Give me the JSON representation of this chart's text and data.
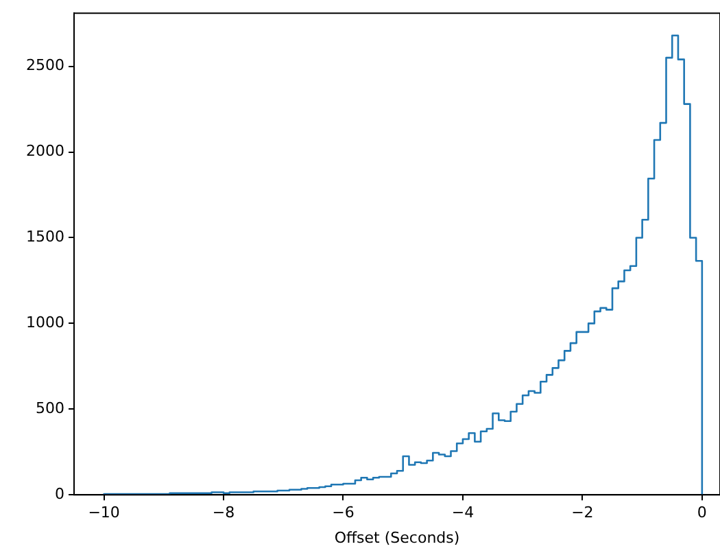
{
  "chart_data": {
    "type": "histogram",
    "xlabel": "Offset (Seconds)",
    "color": "#1f77b4",
    "bins": [
      -10.0,
      -9.9,
      -9.8,
      -9.7,
      -9.6,
      -9.5,
      -9.4,
      -9.3,
      -9.2,
      -9.1,
      -9.0,
      -8.9,
      -8.8,
      -8.7,
      -8.6,
      -8.5,
      -8.4,
      -8.3,
      -8.2,
      -8.1,
      -8.0,
      -7.9,
      -7.8,
      -7.7,
      -7.6,
      -7.5,
      -7.4,
      -7.3,
      -7.2,
      -7.1,
      -7.0,
      -6.9,
      -6.8,
      -6.7,
      -6.6,
      -6.5,
      -6.4,
      -6.3,
      -6.2,
      -6.1,
      -6.0,
      -5.9,
      -5.8,
      -5.7,
      -5.6,
      -5.5,
      -5.4,
      -5.3,
      -5.2,
      -5.1,
      -5.0,
      -4.9,
      -4.8,
      -4.7,
      -4.6,
      -4.5,
      -4.4,
      -4.3,
      -4.2,
      -4.1,
      -4.0,
      -3.9,
      -3.8,
      -3.7,
      -3.6,
      -3.5,
      -3.4,
      -3.3,
      -3.2,
      -3.1,
      -3.0,
      -2.9,
      -2.8,
      -2.7,
      -2.6,
      -2.5,
      -2.4,
      -2.3,
      -2.2,
      -2.1,
      -2.0,
      -1.9,
      -1.8,
      -1.7,
      -1.6,
      -1.5,
      -1.4,
      -1.3,
      -1.2,
      -1.1,
      -1.0,
      -0.9,
      -0.8,
      -0.7,
      -0.6,
      -0.5,
      -0.4,
      -0.3,
      -0.2,
      -0.1,
      0.0
    ],
    "values": [
      5,
      5,
      5,
      5,
      5,
      5,
      5,
      5,
      5,
      5,
      5,
      10,
      10,
      10,
      10,
      10,
      10,
      10,
      15,
      15,
      10,
      15,
      15,
      15,
      15,
      20,
      20,
      20,
      20,
      25,
      25,
      30,
      30,
      35,
      40,
      40,
      45,
      50,
      60,
      60,
      65,
      65,
      85,
      100,
      90,
      100,
      105,
      105,
      125,
      140,
      225,
      175,
      190,
      185,
      200,
      245,
      235,
      225,
      255,
      300,
      325,
      360,
      310,
      370,
      385,
      475,
      435,
      430,
      485,
      530,
      580,
      605,
      595,
      660,
      700,
      740,
      785,
      840,
      885,
      950,
      950,
      1000,
      1070,
      1090,
      1080,
      1205,
      1245,
      1310,
      1335,
      1500,
      1605,
      1845,
      2070,
      2170,
      2550,
      2680,
      2540,
      2280,
      1500,
      1365
    ],
    "xlim": [
      -10.5,
      0.3
    ],
    "ylim": [
      0,
      2810
    ],
    "xticks": [
      -10,
      -8,
      -6,
      -4,
      -2,
      0
    ],
    "yticks": [
      0,
      500,
      1000,
      1500,
      2000,
      2500
    ],
    "grid": false,
    "legend": false
  }
}
